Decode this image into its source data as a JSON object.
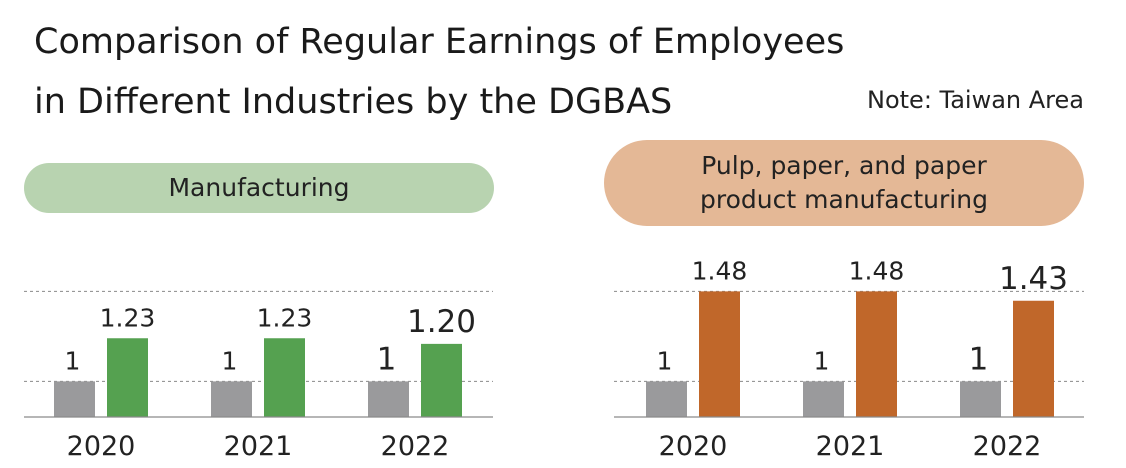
{
  "title_line1": "Comparison of Regular Earnings of Employees",
  "title_line2": "in Different Industries by the DGBAS",
  "note": "Note: Taiwan Area",
  "chart_data": [
    {
      "type": "bar",
      "title": "Manufacturing",
      "categories": [
        "2020",
        "2021",
        "2022"
      ],
      "baseline_value": 1,
      "series": [
        {
          "values": [
            1,
            1,
            1
          ],
          "labels": [
            "1",
            "1",
            "1"
          ],
          "color": "#9a9a9c"
        },
        {
          "values": [
            1.23,
            1.23,
            1.2
          ],
          "labels": [
            "1.23",
            "1.23",
            "1.20"
          ],
          "color": "#55a150"
        }
      ],
      "ylim": [
        0.81,
        1.53
      ],
      "reference_lines": [
        1,
        1.48
      ]
    },
    {
      "type": "bar",
      "title": "Pulp, paper, and paper product manufacturing",
      "categories": [
        "2020",
        "2021",
        "2022"
      ],
      "baseline_value": 1,
      "series": [
        {
          "values": [
            1,
            1,
            1
          ],
          "labels": [
            "1",
            "1",
            "1"
          ],
          "color": "#9a9a9c"
        },
        {
          "values": [
            1.48,
            1.48,
            1.43
          ],
          "labels": [
            "1.48",
            "1.48",
            "1.43"
          ],
          "color": "#c0672a"
        }
      ],
      "ylim": [
        0.81,
        1.53
      ],
      "reference_lines": [
        1,
        1.48
      ]
    }
  ]
}
